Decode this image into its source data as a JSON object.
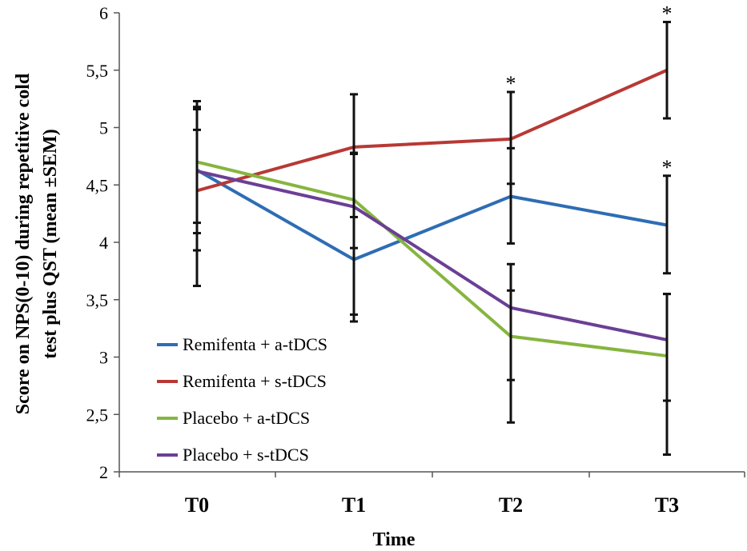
{
  "chart_data": {
    "type": "line",
    "xlabel": "Time",
    "ylabel_lines": [
      "Score on NPS(0-10) during repetitive cold",
      "test plus QST (mean ±SEM)"
    ],
    "categories": [
      "T0",
      "T1",
      "T2",
      "T3"
    ],
    "ylim": [
      2,
      6
    ],
    "yticks": [
      2,
      2.5,
      3,
      3.5,
      4,
      4.5,
      5,
      5.5,
      6
    ],
    "ytick_labels": [
      "2",
      "2,5",
      "3",
      "3,5",
      "4",
      "4,5",
      "5",
      "5,5",
      "6"
    ],
    "series": [
      {
        "name": "Remifenta + a-tDCS",
        "color": "#2e6db4",
        "values": [
          4.63,
          3.85,
          4.4,
          4.15
        ],
        "err_low": [
          4.08,
          3.37,
          3.99,
          3.73
        ],
        "err_high": [
          5.18,
          4.77,
          4.82,
          4.58
        ]
      },
      {
        "name": "Remifenta + s-tDCS",
        "color": "#b73935",
        "values": [
          4.45,
          4.83,
          4.9,
          5.5
        ],
        "err_low": [
          3.93,
          4.22,
          4.51,
          5.08
        ],
        "err_high": [
          4.98,
          5.29,
          5.31,
          5.92
        ]
      },
      {
        "name": "Placebo + a-tDCS",
        "color": "#86b540",
        "values": [
          4.7,
          4.37,
          3.18,
          3.01
        ],
        "err_low": [
          4.17,
          3.95,
          2.43,
          2.15
        ],
        "err_high": [
          5.23,
          4.78,
          3.81,
          3.55
        ]
      },
      {
        "name": "Placebo + s-tDCS",
        "color": "#6b3f95",
        "values": [
          4.62,
          4.31,
          3.43,
          3.15
        ],
        "err_low": [
          3.62,
          3.31,
          2.8,
          2.62
        ],
        "err_high": [
          5.16,
          4.77,
          3.58,
          3.55
        ]
      }
    ],
    "annotations": [
      {
        "text": "*",
        "category": "T2",
        "y": 5.31
      },
      {
        "text": "*",
        "category": "T3",
        "y": 5.92
      },
      {
        "text": "*",
        "category": "T3",
        "y": 4.58
      }
    ]
  }
}
